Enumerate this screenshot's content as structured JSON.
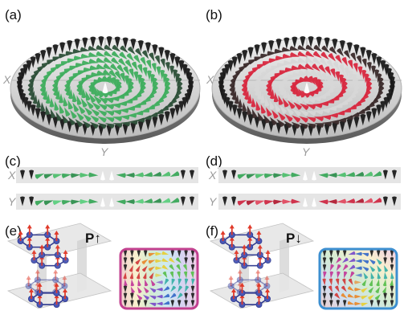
{
  "panels": [
    {
      "label": "(a)"
    },
    {
      "label": "(b)"
    },
    {
      "label": "(c)"
    },
    {
      "label": "(d)"
    },
    {
      "label": "(e)"
    },
    {
      "label": "(f)"
    }
  ],
  "axes": {
    "x": "X",
    "y": "Y"
  },
  "polarization": {
    "up": "P↑",
    "down": "P↓"
  },
  "colors": {
    "green": "#3fae5e",
    "red": "#d8283f",
    "black": "#1a1a1a",
    "disk": "#d9d9d9",
    "frame_magenta": "#c2418f",
    "frame_blue": "#3d8fd0",
    "hexagon": "#2f3a8f",
    "arrow_red": "#e03a2a"
  }
}
